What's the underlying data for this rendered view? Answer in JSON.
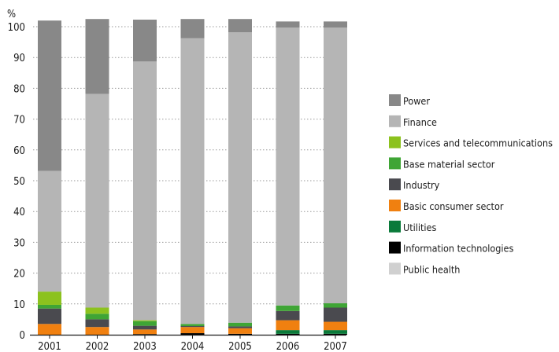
{
  "chart_data": {
    "type": "bar",
    "stacked": true,
    "title": "",
    "xlabel": "",
    "ylabel": "%",
    "ylim": [
      0,
      100
    ],
    "yticks": [
      0,
      10,
      20,
      30,
      40,
      50,
      60,
      70,
      80,
      90,
      100
    ],
    "grid": "horizontal dotted",
    "legend_position": "right",
    "categories": [
      "2001",
      "2002",
      "2003",
      "2004",
      "2005",
      "2006",
      "2007"
    ],
    "series": [
      {
        "name": "Public health",
        "color": "#d0d0d0",
        "values": [
          0,
          0,
          0,
          0,
          0,
          0,
          0
        ]
      },
      {
        "name": "Information technologies",
        "color": "#000000",
        "values": [
          0,
          0,
          0.2,
          0.5,
          0.3,
          0.3,
          0.3
        ]
      },
      {
        "name": "Utilities",
        "color": "#0a7a3a",
        "values": [
          0,
          0,
          0,
          0,
          0,
          1.2,
          1.2
        ]
      },
      {
        "name": "Basic consumer sector",
        "color": "#f08010",
        "values": [
          3.5,
          2.5,
          1.5,
          2.0,
          1.8,
          3.2,
          2.7
        ]
      },
      {
        "name": "Industry",
        "color": "#4a4a4f",
        "values": [
          5.0,
          2.5,
          1.2,
          0.3,
          0.6,
          3.0,
          4.6
        ]
      },
      {
        "name": "Base material sector",
        "color": "#3fa535",
        "values": [
          1.2,
          1.8,
          1.5,
          0.7,
          1.2,
          1.8,
          1.4
        ]
      },
      {
        "name": "Services and telecommunications",
        "color": "#8cc21e",
        "values": [
          4.3,
          2.0,
          0.3,
          0,
          0,
          0,
          0
        ]
      },
      {
        "name": "Finance",
        "color": "#b5b5b5",
        "values": [
          39.2,
          69.4,
          84.0,
          92.8,
          94.3,
          90.2,
          89.5
        ]
      },
      {
        "name": "Power",
        "color": "#888888",
        "values": [
          48.8,
          24.3,
          13.6,
          6.2,
          4.3,
          2.0,
          2.0
        ]
      }
    ]
  },
  "legend": [
    {
      "name": "Power",
      "color": "#888888"
    },
    {
      "name": "Finance",
      "color": "#b5b5b5"
    },
    {
      "name": "Services and telecommunications",
      "color": "#8cc21e"
    },
    {
      "name": "Base material sector",
      "color": "#3fa535"
    },
    {
      "name": "Industry",
      "color": "#4a4a4f"
    },
    {
      "name": "Basic consumer sector",
      "color": "#f08010"
    },
    {
      "name": "Utilities",
      "color": "#0a7a3a"
    },
    {
      "name": "Information technologies",
      "color": "#000000"
    },
    {
      "name": "Public health",
      "color": "#d0d0d0"
    }
  ]
}
